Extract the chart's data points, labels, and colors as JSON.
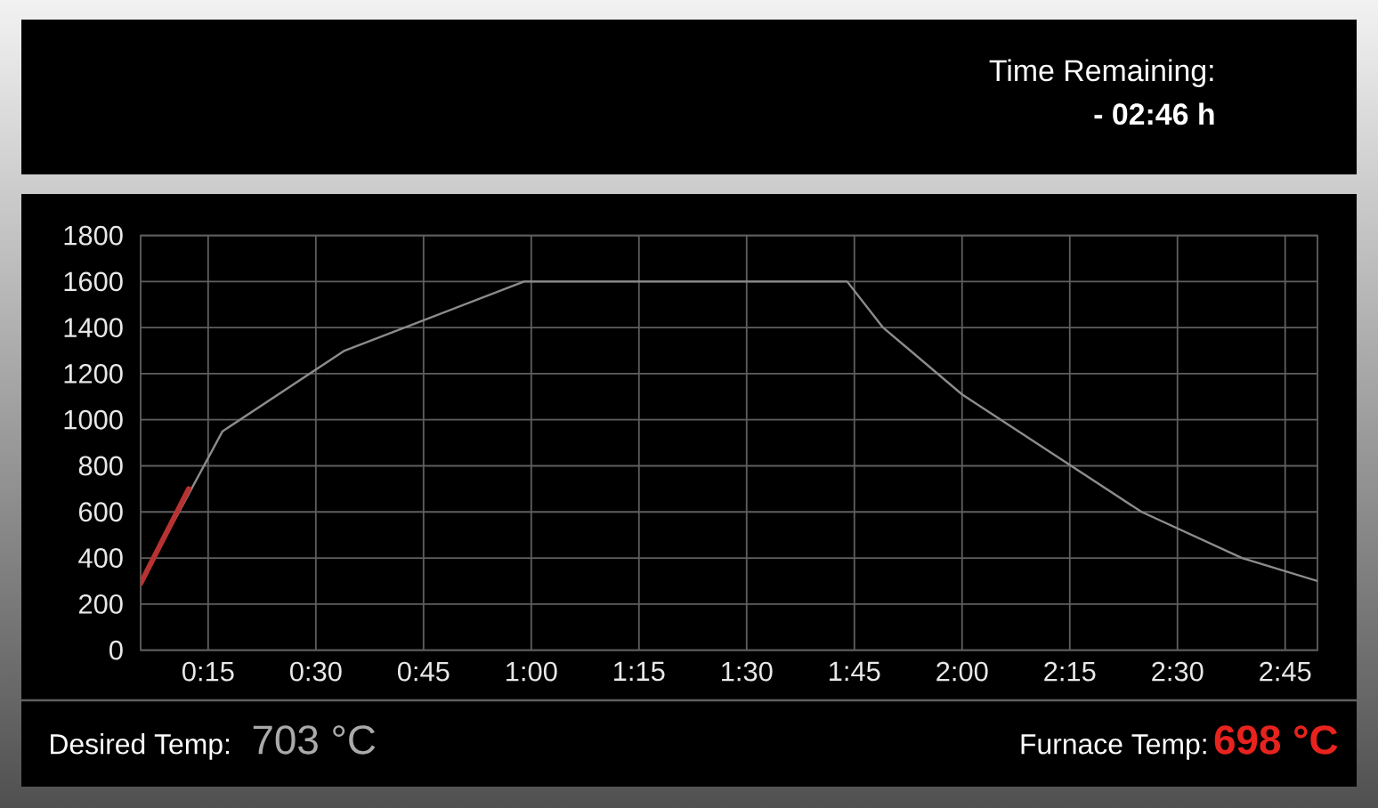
{
  "chart_data": {
    "type": "line",
    "xlim": [
      5.6,
      169.5
    ],
    "ylim": [
      0,
      1800
    ],
    "xticks": [
      {
        "value": 15,
        "label": "0:15"
      },
      {
        "value": 30,
        "label": "0:30"
      },
      {
        "value": 45,
        "label": "0:45"
      },
      {
        "value": 60,
        "label": "1:00"
      },
      {
        "value": 75,
        "label": "1:15"
      },
      {
        "value": 90,
        "label": "1:30"
      },
      {
        "value": 105,
        "label": "1:45"
      },
      {
        "value": 120,
        "label": "2:00"
      },
      {
        "value": 135,
        "label": "2:15"
      },
      {
        "value": 150,
        "label": "2:30"
      },
      {
        "value": 165,
        "label": "2:45"
      }
    ],
    "yticks": [
      0,
      200,
      400,
      600,
      800,
      1000,
      1200,
      1400,
      1600,
      1800
    ],
    "grid": true,
    "series": [
      {
        "color": "#8c8c8c",
        "x": [
          5.6,
          17,
          34,
          59,
          104,
          109,
          120,
          145,
          159,
          169.5
        ],
        "values": [
          290,
          950,
          1300,
          1600,
          1600,
          1400,
          1110,
          600,
          400,
          300
        ]
      },
      {
        "color": "#b83232",
        "x": [
          5.6,
          12.3
        ],
        "values": [
          290,
          700
        ]
      }
    ],
    "annotations": [
      "Time Remaining:",
      "- 02:46 h",
      "Desired Temp:",
      "703 °C",
      "Furnace Temp:",
      "698 °C"
    ]
  }
}
